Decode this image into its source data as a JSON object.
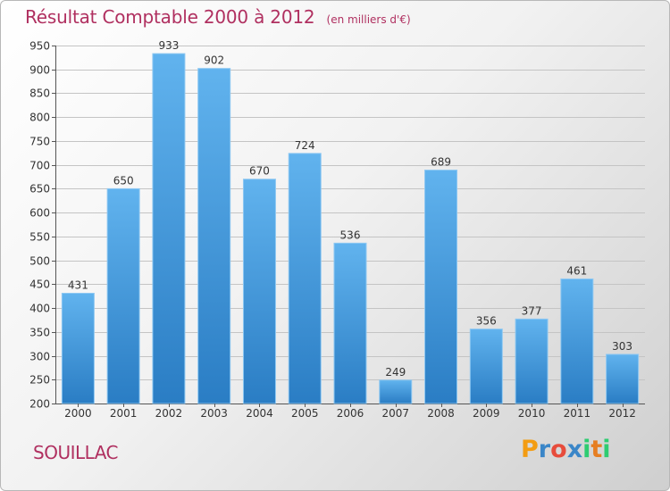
{
  "title": "Résultat Comptable 2000 à 2012",
  "unit": "(en milliers d'€)",
  "commune": "SOUILLAC",
  "logo": {
    "letters": [
      "P",
      "r",
      "o",
      "x",
      "i",
      "t",
      "i"
    ],
    "colors": [
      "#f39c12",
      "#3a86c8",
      "#e74c3c",
      "#3a86c8",
      "#2ecc71",
      "#e67e22",
      "#2ecc71"
    ]
  },
  "colors": {
    "bar_light": "#61b3ee",
    "bar_dark": "#2a7dc4",
    "title": "#b03060"
  },
  "chart_data": {
    "type": "bar",
    "title": "Résultat Comptable 2000 à 2012",
    "ylabel": "(en milliers d'€)",
    "xlabel": "",
    "categories": [
      "2000",
      "2001",
      "2002",
      "2003",
      "2004",
      "2005",
      "2006",
      "2007",
      "2008",
      "2009",
      "2010",
      "2011",
      "2012"
    ],
    "values": [
      431,
      650,
      933,
      902,
      670,
      724,
      536,
      249,
      689,
      356,
      377,
      461,
      303
    ],
    "ylim": [
      200,
      950
    ],
    "yticks": [
      200,
      250,
      300,
      350,
      400,
      450,
      500,
      550,
      600,
      650,
      700,
      750,
      800,
      850,
      900,
      950
    ],
    "grid": true
  }
}
